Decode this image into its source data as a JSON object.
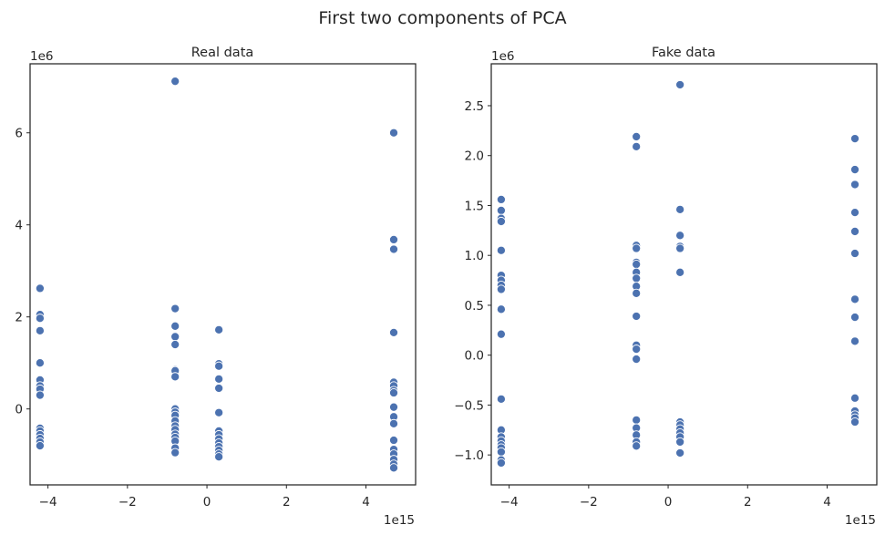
{
  "figure": {
    "title": "First two components of PCA"
  },
  "style": {
    "point_color": "#4c72b0",
    "point_edge": "#ffffff",
    "axis_color": "#262626"
  },
  "chart_data": [
    {
      "type": "scatter",
      "title": "Real data",
      "xlabel": "",
      "ylabel": "",
      "x_offset_text": "1e15",
      "y_offset_text": "1e6",
      "xlim": [
        -4.45,
        5.25
      ],
      "ylim": [
        -1.65,
        7.5
      ],
      "xticks": [
        -4,
        -2,
        0,
        2,
        4
      ],
      "xtick_labels": [
        "−4",
        "−2",
        "0",
        "2",
        "4"
      ],
      "yticks": [
        0,
        2,
        4,
        6
      ],
      "ytick_labels": [
        "0",
        "2",
        "4",
        "6"
      ],
      "grid": false,
      "points": [
        {
          "x": -4.2,
          "y": 2.62
        },
        {
          "x": -4.2,
          "y": 2.05
        },
        {
          "x": -4.2,
          "y": 1.97
        },
        {
          "x": -4.2,
          "y": 1.7
        },
        {
          "x": -4.2,
          "y": 1.0
        },
        {
          "x": -4.2,
          "y": 0.63
        },
        {
          "x": -4.2,
          "y": 0.5
        },
        {
          "x": -4.2,
          "y": 0.43
        },
        {
          "x": -4.2,
          "y": 0.3
        },
        {
          "x": -4.2,
          "y": -0.42
        },
        {
          "x": -4.2,
          "y": -0.48
        },
        {
          "x": -4.2,
          "y": -0.56
        },
        {
          "x": -4.2,
          "y": -0.64
        },
        {
          "x": -4.2,
          "y": -0.72
        },
        {
          "x": -4.2,
          "y": -0.8
        },
        {
          "x": -0.8,
          "y": 7.12
        },
        {
          "x": -0.8,
          "y": 2.18
        },
        {
          "x": -0.8,
          "y": 1.8
        },
        {
          "x": -0.8,
          "y": 1.57
        },
        {
          "x": -0.8,
          "y": 1.4
        },
        {
          "x": -0.8,
          "y": 0.85
        },
        {
          "x": -0.8,
          "y": 0.83
        },
        {
          "x": -0.8,
          "y": 0.7
        },
        {
          "x": -0.8,
          "y": 0.0
        },
        {
          "x": -0.8,
          "y": -0.07
        },
        {
          "x": -0.8,
          "y": -0.14
        },
        {
          "x": -0.8,
          "y": -0.26
        },
        {
          "x": -0.8,
          "y": -0.37
        },
        {
          "x": -0.8,
          "y": -0.45
        },
        {
          "x": -0.8,
          "y": -0.55
        },
        {
          "x": -0.8,
          "y": -0.62
        },
        {
          "x": -0.8,
          "y": -0.7
        },
        {
          "x": -0.8,
          "y": -0.85
        },
        {
          "x": -0.8,
          "y": -0.95
        },
        {
          "x": 0.3,
          "y": 1.72
        },
        {
          "x": 0.3,
          "y": 0.98
        },
        {
          "x": 0.3,
          "y": 0.93
        },
        {
          "x": 0.3,
          "y": 0.65
        },
        {
          "x": 0.3,
          "y": 0.45
        },
        {
          "x": 0.3,
          "y": -0.08
        },
        {
          "x": 0.3,
          "y": -0.48
        },
        {
          "x": 0.3,
          "y": -0.56
        },
        {
          "x": 0.3,
          "y": -0.65
        },
        {
          "x": 0.3,
          "y": -0.74
        },
        {
          "x": 0.3,
          "y": -0.82
        },
        {
          "x": 0.3,
          "y": -0.9
        },
        {
          "x": 0.3,
          "y": -0.98
        },
        {
          "x": 0.3,
          "y": -1.04
        },
        {
          "x": 4.7,
          "y": 6.0
        },
        {
          "x": 4.7,
          "y": 3.68
        },
        {
          "x": 4.7,
          "y": 3.47
        },
        {
          "x": 4.7,
          "y": 1.66
        },
        {
          "x": 4.7,
          "y": 0.58
        },
        {
          "x": 4.7,
          "y": 0.5
        },
        {
          "x": 4.7,
          "y": 0.4
        },
        {
          "x": 4.7,
          "y": 0.35
        },
        {
          "x": 4.7,
          "y": 0.04
        },
        {
          "x": 4.7,
          "y": -0.17
        },
        {
          "x": 4.7,
          "y": -0.32
        },
        {
          "x": 4.7,
          "y": -0.68
        },
        {
          "x": 4.7,
          "y": -0.88
        },
        {
          "x": 4.7,
          "y": -0.98
        },
        {
          "x": 4.7,
          "y": -1.1
        },
        {
          "x": 4.7,
          "y": -1.2
        },
        {
          "x": 4.7,
          "y": -1.28
        }
      ]
    },
    {
      "type": "scatter",
      "title": "Fake data",
      "xlabel": "",
      "ylabel": "",
      "x_offset_text": "1e15",
      "y_offset_text": "1e6",
      "xlim": [
        -4.45,
        5.25
      ],
      "ylim": [
        -1.3,
        2.92
      ],
      "xticks": [
        -4,
        -2,
        0,
        2,
        4
      ],
      "xtick_labels": [
        "−4",
        "−2",
        "0",
        "2",
        "4"
      ],
      "yticks": [
        -1.0,
        -0.5,
        0.0,
        0.5,
        1.0,
        1.5,
        2.0,
        2.5
      ],
      "ytick_labels": [
        "−1.0",
        "−0.5",
        "0.0",
        "0.5",
        "1.0",
        "1.5",
        "2.0",
        "2.5"
      ],
      "grid": false,
      "points": [
        {
          "x": -4.2,
          "y": 1.56
        },
        {
          "x": -4.2,
          "y": 1.45
        },
        {
          "x": -4.2,
          "y": 1.37
        },
        {
          "x": -4.2,
          "y": 1.34
        },
        {
          "x": -4.2,
          "y": 1.05
        },
        {
          "x": -4.2,
          "y": 0.8
        },
        {
          "x": -4.2,
          "y": 0.75
        },
        {
          "x": -4.2,
          "y": 0.7
        },
        {
          "x": -4.2,
          "y": 0.66
        },
        {
          "x": -4.2,
          "y": 0.46
        },
        {
          "x": -4.2,
          "y": 0.21
        },
        {
          "x": -4.2,
          "y": -0.44
        },
        {
          "x": -4.2,
          "y": -0.75
        },
        {
          "x": -4.2,
          "y": -0.82
        },
        {
          "x": -4.2,
          "y": -0.86
        },
        {
          "x": -4.2,
          "y": -0.9
        },
        {
          "x": -4.2,
          "y": -0.93
        },
        {
          "x": -4.2,
          "y": -0.97
        },
        {
          "x": -4.2,
          "y": -1.05
        },
        {
          "x": -4.2,
          "y": -1.08
        },
        {
          "x": -0.8,
          "y": 2.19
        },
        {
          "x": -0.8,
          "y": 2.09
        },
        {
          "x": -0.8,
          "y": 1.1
        },
        {
          "x": -0.8,
          "y": 1.07
        },
        {
          "x": -0.8,
          "y": 0.93
        },
        {
          "x": -0.8,
          "y": 0.91
        },
        {
          "x": -0.8,
          "y": 0.83
        },
        {
          "x": -0.8,
          "y": 0.77
        },
        {
          "x": -0.8,
          "y": 0.69
        },
        {
          "x": -0.8,
          "y": 0.62
        },
        {
          "x": -0.8,
          "y": 0.39
        },
        {
          "x": -0.8,
          "y": 0.1
        },
        {
          "x": -0.8,
          "y": 0.06
        },
        {
          "x": -0.8,
          "y": -0.04
        },
        {
          "x": -0.8,
          "y": -0.65
        },
        {
          "x": -0.8,
          "y": -0.73
        },
        {
          "x": -0.8,
          "y": -0.8
        },
        {
          "x": -0.8,
          "y": -0.87
        },
        {
          "x": -0.8,
          "y": -0.91
        },
        {
          "x": 0.3,
          "y": 2.71
        },
        {
          "x": 0.3,
          "y": 1.46
        },
        {
          "x": 0.3,
          "y": 1.2
        },
        {
          "x": 0.3,
          "y": 1.09
        },
        {
          "x": 0.3,
          "y": 1.07
        },
        {
          "x": 0.3,
          "y": 0.83
        },
        {
          "x": 0.3,
          "y": -0.67
        },
        {
          "x": 0.3,
          "y": -0.7
        },
        {
          "x": 0.3,
          "y": -0.74
        },
        {
          "x": 0.3,
          "y": -0.78
        },
        {
          "x": 0.3,
          "y": -0.82
        },
        {
          "x": 0.3,
          "y": -0.87
        },
        {
          "x": 0.3,
          "y": -0.98
        },
        {
          "x": 4.7,
          "y": 2.17
        },
        {
          "x": 4.7,
          "y": 1.86
        },
        {
          "x": 4.7,
          "y": 1.71
        },
        {
          "x": 4.7,
          "y": 1.43
        },
        {
          "x": 4.7,
          "y": 1.24
        },
        {
          "x": 4.7,
          "y": 1.02
        },
        {
          "x": 4.7,
          "y": 0.56
        },
        {
          "x": 4.7,
          "y": 0.38
        },
        {
          "x": 4.7,
          "y": 0.14
        },
        {
          "x": 4.7,
          "y": -0.43
        },
        {
          "x": 4.7,
          "y": -0.56
        },
        {
          "x": 4.7,
          "y": -0.6
        },
        {
          "x": 4.7,
          "y": -0.63
        },
        {
          "x": 4.7,
          "y": -0.67
        }
      ]
    }
  ]
}
